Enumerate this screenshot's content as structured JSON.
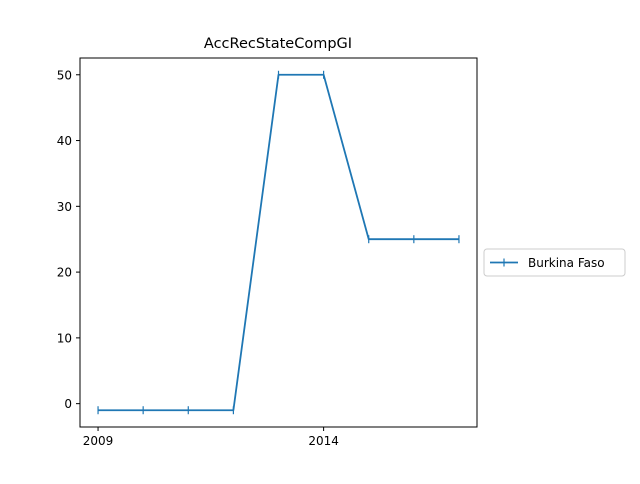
{
  "chart_data": {
    "type": "line",
    "title": "AccRecStateCompGI",
    "xlabel": "",
    "ylabel": "",
    "x": [
      2009,
      2010,
      2011,
      2012,
      2013,
      2014,
      2015,
      2016,
      2017
    ],
    "xlim": [
      2008.6,
      2017.4
    ],
    "ylim": [
      -3.55,
      52.55
    ],
    "xticks": [
      2009,
      2014
    ],
    "yticks": [
      0,
      10,
      20,
      30,
      40,
      50
    ],
    "grid": false,
    "legend_position": "right",
    "series": [
      {
        "name": "Burkina Faso",
        "color": "#1f77b4",
        "marker": "vertical-tick",
        "values": [
          -1,
          -1,
          -1,
          -1,
          50,
          50,
          25,
          25,
          25
        ]
      }
    ]
  }
}
